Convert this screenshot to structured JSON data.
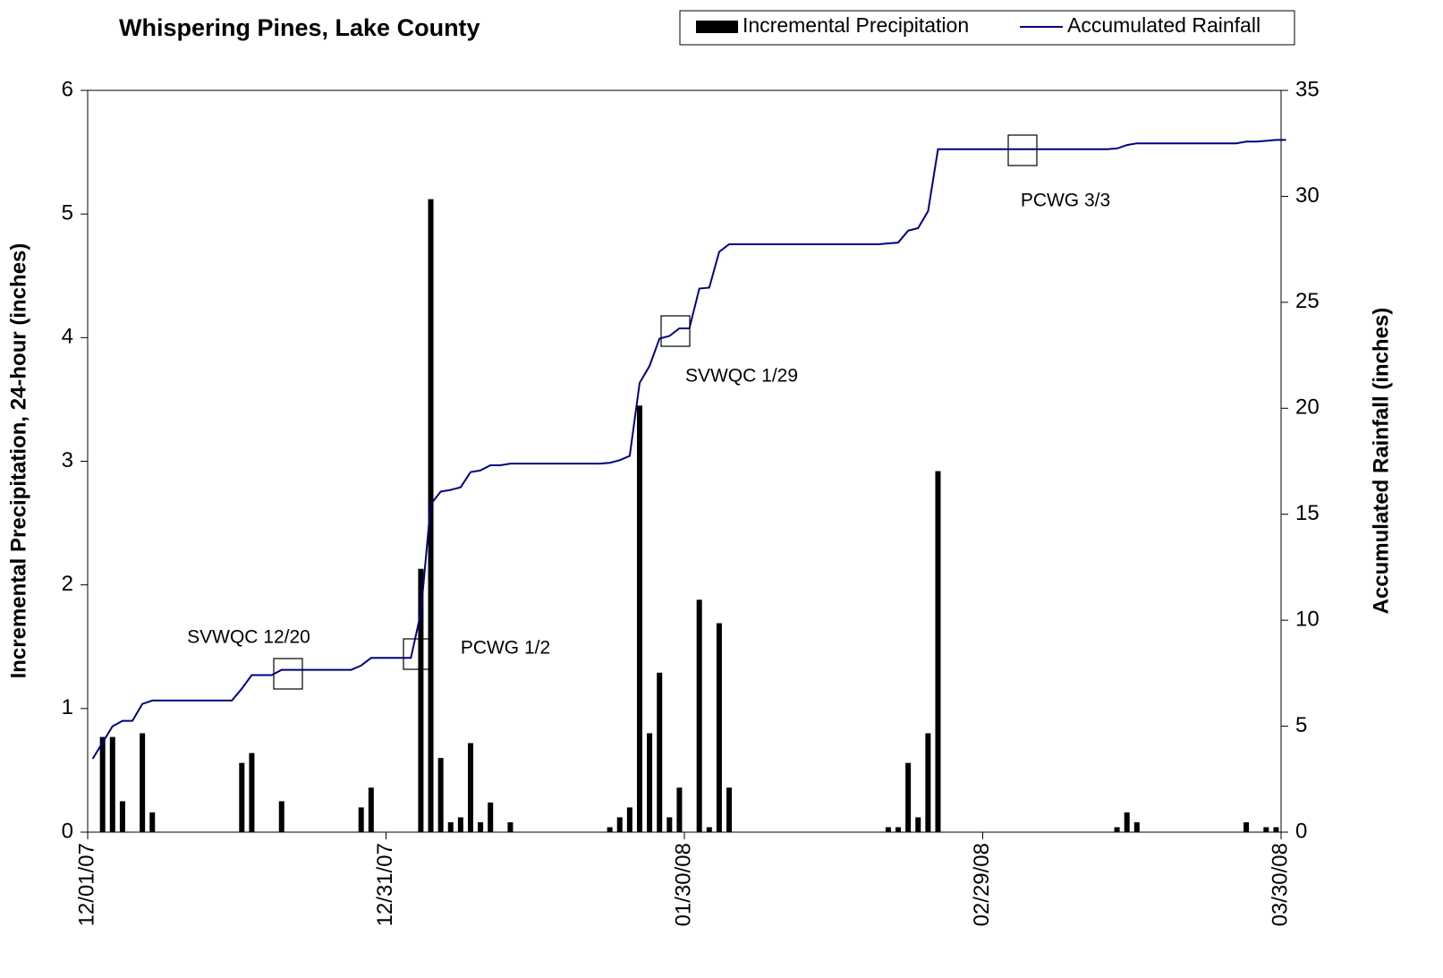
{
  "chart_data": {
    "type": "combo",
    "title": "Whispering Pines, Lake County",
    "y_label": "Incremental Precipitation, 24-hour (inches)",
    "y2_label": "Accumulated Rainfall (inches)",
    "xlim": [
      "12/01/07",
      "03/30/08"
    ],
    "xticks": [
      "12/01/07",
      "12/31/07",
      "01/30/08",
      "02/29/08",
      "03/30/08"
    ],
    "ylim": [
      0,
      6
    ],
    "yticks": [
      0,
      1,
      2,
      3,
      4,
      5,
      6
    ],
    "y2lim": [
      0,
      35
    ],
    "y2ticks": [
      0,
      5,
      10,
      15,
      20,
      25,
      30,
      35
    ],
    "legend": "top-right",
    "annotations": [
      "SVWQC 12/20",
      "PCWG 1/2",
      "SVWQC 1/29",
      "PCWG 3/3"
    ],
    "series": [
      {
        "name": "Incremental Precipitation",
        "type": "bar",
        "color": "#000000",
        "x": [
          "12/02/07",
          "12/03/07",
          "12/04/07",
          "12/06/07",
          "12/07/07",
          "12/16/07",
          "12/17/07",
          "12/20/07",
          "12/28/07",
          "12/29/07",
          "01/03/08",
          "01/04/08",
          "01/05/08",
          "01/06/08",
          "01/07/08",
          "01/08/08",
          "01/09/08",
          "01/10/08",
          "01/12/08",
          "01/22/08",
          "01/23/08",
          "01/24/08",
          "01/25/08",
          "01/26/08",
          "01/27/08",
          "01/28/08",
          "01/29/08",
          "01/31/08",
          "02/01/08",
          "02/02/08",
          "02/03/08",
          "02/19/08",
          "02/20/08",
          "02/21/08",
          "02/22/08",
          "02/23/08",
          "02/24/08",
          "03/13/08",
          "03/14/08",
          "03/15/08",
          "03/26/08",
          "03/28/08",
          "03/29/08"
        ],
        "values": [
          0.77,
          0.77,
          0.25,
          0.8,
          0.16,
          0.56,
          0.64,
          0.25,
          0.2,
          0.36,
          2.13,
          5.12,
          0.6,
          0.08,
          0.12,
          0.72,
          0.08,
          0.24,
          0.08,
          0.04,
          0.12,
          0.2,
          3.45,
          0.8,
          1.29,
          0.12,
          0.36,
          1.88,
          0.04,
          1.69,
          0.36,
          0.04,
          0.04,
          0.56,
          0.12,
          0.8,
          2.92,
          0.04,
          0.16,
          0.08,
          0.08,
          0.04,
          0.04
        ]
      },
      {
        "name": "Accumulated Rainfall",
        "type": "line",
        "color": "#000080",
        "axis": "y2",
        "x": [
          "12/01/07",
          "12/02/07",
          "12/03/07",
          "12/04/07",
          "12/05/07",
          "12/06/07",
          "12/07/07",
          "12/15/07",
          "12/16/07",
          "12/17/07",
          "12/19/07",
          "12/20/07",
          "12/27/07",
          "12/28/07",
          "12/29/07",
          "01/02/08",
          "01/03/08",
          "01/04/08",
          "01/05/08",
          "01/06/08",
          "01/07/08",
          "01/08/08",
          "01/09/08",
          "01/10/08",
          "01/11/08",
          "01/12/08",
          "01/21/08",
          "01/22/08",
          "01/23/08",
          "01/24/08",
          "01/25/08",
          "01/26/08",
          "01/27/08",
          "01/28/08",
          "01/29/08",
          "01/30/08",
          "01/31/08",
          "02/01/08",
          "02/02/08",
          "02/03/08",
          "02/18/08",
          "02/19/08",
          "02/20/08",
          "02/21/08",
          "02/22/08",
          "02/23/08",
          "02/24/08",
          "03/12/08",
          "03/13/08",
          "03/14/08",
          "03/15/08",
          "03/25/08",
          "03/26/08",
          "03/27/08",
          "03/28/08",
          "03/29/08",
          "03/30/08"
        ],
        "values": [
          3.46,
          4.23,
          5.0,
          5.25,
          5.25,
          6.05,
          6.21,
          6.21,
          6.77,
          7.41,
          7.41,
          7.66,
          7.66,
          7.86,
          8.22,
          8.22,
          10.35,
          15.47,
          16.07,
          16.15,
          16.27,
          16.99,
          17.07,
          17.31,
          17.31,
          17.39,
          17.39,
          17.43,
          17.55,
          17.75,
          21.2,
          22.0,
          23.29,
          23.41,
          23.77,
          23.77,
          25.65,
          25.69,
          27.38,
          27.74,
          27.74,
          27.78,
          27.82,
          28.38,
          28.5,
          29.3,
          32.22,
          32.22,
          32.26,
          32.42,
          32.5,
          32.5,
          32.58,
          32.58,
          32.62,
          32.66,
          32.66
        ]
      }
    ]
  }
}
